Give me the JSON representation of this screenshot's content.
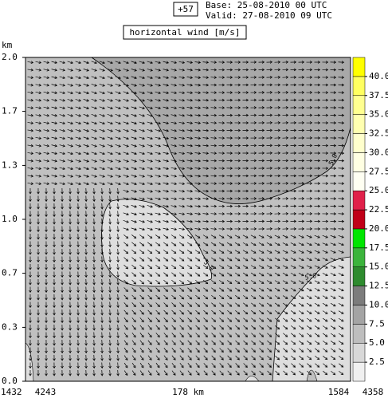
{
  "chart_data": {
    "type": "contour",
    "run_label": "+57",
    "base": "Base: 25-08-2010  00 UTC",
    "valid": "Valid: 27-08-2010  09 UTC",
    "title": "horizontal wind [m/s]",
    "ylabel": "km",
    "ylim": [
      0,
      2
    ],
    "yticks": [
      {
        "value": 0,
        "label": "0.0"
      },
      {
        "value": 0.333,
        "label": "0.3"
      },
      {
        "value": 0.667,
        "label": "0.7"
      },
      {
        "value": 1,
        "label": "1.0"
      },
      {
        "value": 1.333,
        "label": "1.3"
      },
      {
        "value": 1.667,
        "label": "1.7"
      },
      {
        "value": 2,
        "label": "2.0"
      }
    ],
    "x_labels": [
      "1432",
      "4243",
      "178 km",
      "1584",
      "4358"
    ],
    "contour_labels": [
      "5.0",
      "5.0",
      "5.0",
      "5.0"
    ],
    "colorbar": {
      "lim": [
        0,
        42.5
      ],
      "ticks": [
        2.5,
        5,
        7.5,
        10,
        12.5,
        15,
        17.5,
        20,
        22.5,
        25,
        27.5,
        30,
        32.5,
        35,
        37.5,
        40
      ],
      "tick_labels": [
        "2.5",
        "5.0",
        "7.5",
        "10.0",
        "12.5",
        "15.0",
        "17.5",
        "20.0",
        "22.5",
        "25.0",
        "27.5",
        "30.0",
        "32.5",
        "35.0",
        "37.5",
        "40.0"
      ],
      "colors": [
        "#f0f0f0",
        "#d8d8d8",
        "#bebebe",
        "#a4a4a4",
        "#7c7c7c",
        "#2e8b2e",
        "#3cb43c",
        "#00e600",
        "#c00018",
        "#e0204a",
        "#fffff2",
        "#ffffe2",
        "#ffffcc",
        "#ffffb0",
        "#ffff90",
        "#ffff60",
        "#ffff00"
      ]
    }
  }
}
